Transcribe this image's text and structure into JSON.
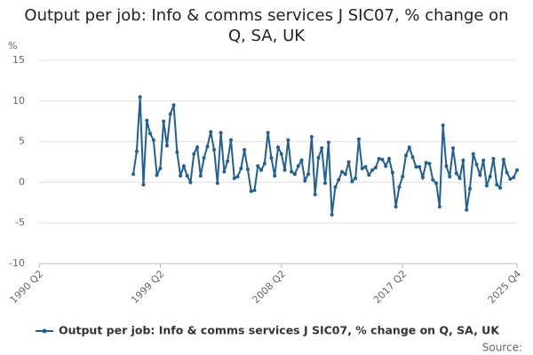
{
  "chart_data": {
    "type": "line",
    "title": "Output per job: Info & comms services J SIC07, % change on Q, SA, UK",
    "y_label": "%",
    "source": "Source:",
    "categories": [
      "1990 Q2",
      null,
      null,
      null,
      null,
      null,
      null,
      null,
      null,
      null,
      null,
      null,
      null,
      null,
      null,
      null,
      null,
      null,
      null,
      null,
      null,
      null,
      null,
      null,
      null,
      null,
      null,
      null,
      null,
      null,
      null,
      null,
      null,
      null,
      null,
      null,
      "1999 Q2",
      null,
      null,
      null,
      null,
      null,
      null,
      null,
      null,
      null,
      null,
      null,
      null,
      null,
      null,
      null,
      null,
      null,
      null,
      null,
      null,
      null,
      null,
      null,
      null,
      null,
      null,
      null,
      null,
      null,
      null,
      null,
      null,
      null,
      null,
      null,
      "2008 Q2",
      null,
      null,
      null,
      null,
      null,
      null,
      null,
      null,
      null,
      null,
      null,
      null,
      null,
      null,
      null,
      null,
      null,
      null,
      null,
      null,
      null,
      null,
      null,
      null,
      null,
      null,
      null,
      null,
      null,
      null,
      null,
      null,
      null,
      null,
      null,
      "2017 Q2",
      null,
      null,
      null,
      null,
      null,
      null,
      null,
      null,
      null,
      null,
      null,
      null,
      null,
      null,
      null,
      null,
      null,
      null,
      null,
      null,
      null,
      null,
      null,
      null,
      null,
      null,
      null,
      null,
      null,
      null,
      null,
      null,
      null,
      "2025 Q4"
    ],
    "series": [
      {
        "name": "Output per job: Info & comms services J SIC07, % change on Q, SA, UK",
        "color": "#206095",
        "values": [
          null,
          null,
          null,
          null,
          null,
          null,
          null,
          null,
          null,
          null,
          null,
          null,
          null,
          null,
          null,
          null,
          null,
          null,
          null,
          null,
          null,
          null,
          null,
          null,
          null,
          null,
          null,
          null,
          1.0,
          3.8,
          10.5,
          -0.3,
          7.6,
          6.0,
          5.2,
          0.9,
          1.7,
          7.5,
          4.5,
          8.4,
          9.5,
          3.7,
          0.8,
          2.0,
          0.8,
          0.0,
          3.5,
          4.3,
          0.8,
          3.0,
          4.4,
          6.2,
          4.0,
          -0.1,
          6.1,
          1.3,
          2.6,
          5.2,
          0.5,
          0.7,
          1.7,
          4.0,
          1.6,
          -1.1,
          -1.0,
          2.0,
          1.5,
          2.3,
          6.1,
          3.0,
          0.8,
          4.3,
          3.5,
          1.5,
          5.2,
          1.3,
          1.0,
          2.0,
          2.7,
          0.2,
          1.0,
          5.6,
          -1.5,
          3.0,
          4.2,
          -0.1,
          4.9,
          -4.0,
          -0.6,
          0.3,
          1.3,
          1.0,
          2.5,
          0.1,
          0.5,
          5.3,
          1.7,
          1.9,
          0.9,
          1.5,
          1.8,
          2.9,
          2.8,
          2.0,
          2.9,
          1.2,
          -3.0,
          -0.6,
          0.7,
          3.3,
          4.3,
          3.1,
          1.9,
          1.9,
          0.6,
          2.4,
          2.3,
          0.3,
          -0.1,
          -3.0,
          7.0,
          2.0,
          0.7,
          4.2,
          1.1,
          0.5,
          2.7,
          -3.4,
          -0.8,
          3.5,
          2.2,
          0.9,
          2.7,
          -0.4,
          0.7,
          2.9,
          -0.3,
          -0.7,
          2.8,
          1.2,
          0.4,
          0.6,
          1.5
        ]
      }
    ],
    "ylim": [
      -10,
      15
    ],
    "yticks": [
      -10,
      -5,
      0,
      5,
      10,
      15
    ],
    "grid": true,
    "legend": "bottom"
  }
}
